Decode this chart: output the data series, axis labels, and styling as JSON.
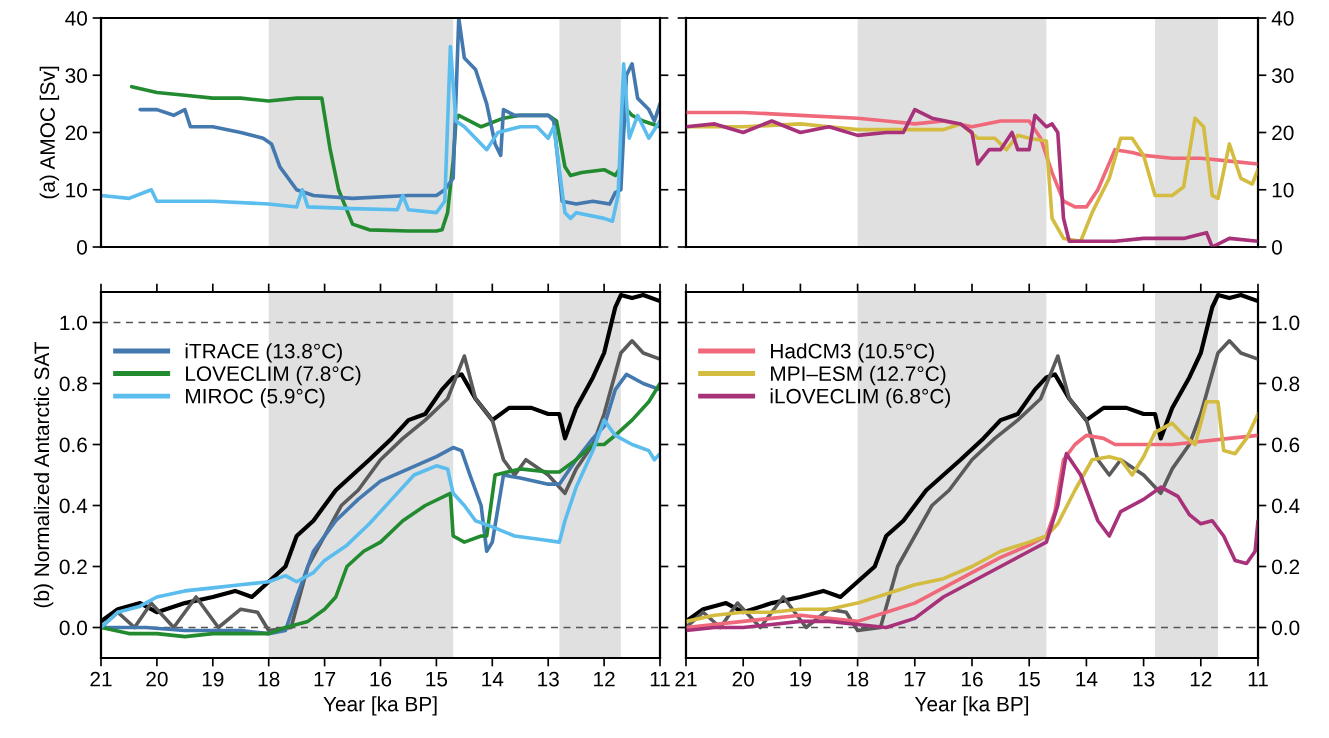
{
  "chart_data": [
    {
      "type": "line",
      "ylabel": "(a) AMOC [Sv]",
      "xlim": [
        21,
        11
      ],
      "xticks": [
        21,
        20,
        19,
        18,
        17,
        16,
        15,
        14,
        13,
        12,
        11
      ],
      "ylim": [
        0,
        40
      ],
      "yticks": [
        0,
        10,
        20,
        30,
        40
      ],
      "tick_labels": "y",
      "legend": false,
      "bands": [
        {
          "axis": "x",
          "from": 18,
          "to": 14.7,
          "color": "#e0e0e0"
        },
        {
          "axis": "x",
          "from": 12.8,
          "to": 11.7,
          "color": "#e0e0e0"
        }
      ],
      "series": [
        {
          "color": "#228b2f",
          "x": [
            20.45,
            20.0,
            19.5,
            19.0,
            18.5,
            18.0,
            17.5,
            17.05,
            16.9,
            16.75,
            16.5,
            16.2,
            15.5,
            15.0,
            14.9,
            14.8,
            14.7,
            14.65,
            14.6,
            14.4,
            14.2,
            13.8,
            13.5,
            13.0,
            12.85,
            12.7,
            12.6,
            12.4,
            12.0,
            11.8,
            11.7,
            11.65,
            11.6,
            11.5,
            11.3,
            11.0
          ],
          "values": [
            28,
            27,
            26.5,
            26,
            26,
            25.5,
            26,
            26,
            17,
            10,
            4,
            3,
            2.8,
            2.8,
            3,
            6,
            15,
            22,
            23,
            22,
            21,
            22.5,
            23,
            23,
            22,
            14,
            12.5,
            13,
            13.5,
            12.5,
            14,
            21,
            24,
            23,
            22,
            21
          ]
        },
        {
          "color": "#4479b0",
          "x": [
            20.3,
            20.0,
            19.7,
            19.5,
            19.4,
            19.0,
            18.5,
            18.1,
            17.95,
            17.8,
            17.5,
            17.2,
            16.5,
            15.5,
            15.0,
            14.85,
            14.7,
            14.6,
            14.5,
            14.3,
            14.1,
            13.95,
            13.85,
            13.8,
            13.6,
            13.0,
            12.9,
            12.75,
            12.5,
            12.2,
            11.9,
            11.8,
            11.7,
            11.6,
            11.5,
            11.4,
            11.2,
            11.1,
            11.0
          ],
          "values": [
            24,
            24,
            23,
            24,
            21,
            21,
            20,
            19,
            18,
            14,
            10,
            9,
            8.5,
            9,
            9,
            10,
            12,
            40,
            33,
            31,
            25,
            18,
            16,
            24,
            23,
            23,
            22,
            8,
            7.5,
            8,
            7.5,
            9.5,
            10,
            30,
            32,
            26,
            24,
            22,
            25
          ]
        },
        {
          "color": "#5bbdee",
          "x": [
            21.0,
            20.5,
            20.1,
            20.0,
            19.0,
            18.0,
            17.5,
            17.4,
            17.3,
            16.5,
            15.7,
            15.6,
            15.5,
            15.0,
            14.85,
            14.75,
            14.65,
            14.5,
            14.3,
            14.1,
            13.9,
            13.5,
            13.2,
            13.0,
            12.9,
            12.7,
            12.6,
            12.5,
            12.0,
            11.85,
            11.75,
            11.65,
            11.55,
            11.4,
            11.2,
            11.0
          ],
          "values": [
            9,
            8.5,
            10,
            8,
            8,
            7.5,
            7,
            10,
            7,
            6.7,
            6.5,
            9,
            6.5,
            6,
            8,
            35,
            22,
            21,
            19,
            17,
            20,
            21,
            21,
            19,
            21,
            6,
            5,
            6,
            5,
            4.5,
            9,
            32,
            19,
            23,
            19,
            22
          ]
        }
      ]
    },
    {
      "type": "line",
      "xlim": [
        21,
        11
      ],
      "xticks": [
        21,
        20,
        19,
        18,
        17,
        16,
        15,
        14,
        13,
        12,
        11
      ],
      "y2lim": [
        0,
        40
      ],
      "y2ticks": [
        0,
        10,
        20,
        30,
        40
      ],
      "tick_labels": "y",
      "legend": false,
      "bands": [
        {
          "axis": "x",
          "from": 18,
          "to": 14.7,
          "color": "#e0e0e0"
        },
        {
          "axis": "x",
          "from": 12.8,
          "to": 11.7,
          "color": "#e0e0e0"
        }
      ],
      "series": [
        {
          "axis": "y2",
          "color": "#f0697a",
          "x": [
            21.0,
            20.0,
            19.0,
            18.0,
            17.5,
            17.0,
            16.5,
            16.0,
            15.5,
            15.0,
            14.8,
            14.6,
            14.4,
            14.2,
            14.0,
            13.8,
            13.5,
            13.2,
            13.0,
            12.5,
            12.0,
            11.5,
            11.0
          ],
          "values": [
            23.5,
            23.5,
            23,
            22.5,
            22,
            21.5,
            22,
            21,
            22,
            22,
            19,
            13,
            8,
            7,
            7,
            10,
            17,
            16.5,
            16,
            15.5,
            15.5,
            15,
            14.5
          ]
        },
        {
          "axis": "y2",
          "color": "#d3bc3f",
          "x": [
            21.0,
            20.0,
            19.0,
            18.5,
            18.0,
            17.5,
            16.5,
            16.2,
            15.9,
            15.6,
            15.4,
            15.2,
            15.0,
            14.7,
            14.6,
            14.4,
            14.1,
            13.9,
            13.6,
            13.4,
            13.2,
            13.0,
            12.8,
            12.5,
            12.3,
            12.1,
            11.95,
            11.8,
            11.7,
            11.5,
            11.3,
            11.1,
            11.0
          ],
          "values": [
            21,
            21,
            21.5,
            21,
            20.5,
            20.5,
            20.5,
            21.5,
            19,
            19,
            17,
            19.5,
            19,
            18.5,
            5,
            1.5,
            1,
            6,
            12,
            19,
            19,
            16,
            9,
            9,
            10.5,
            22.5,
            21,
            9,
            8.5,
            18,
            12,
            11,
            13.5
          ]
        },
        {
          "axis": "y2",
          "color": "#a8327a",
          "x": [
            21.0,
            20.5,
            20.0,
            19.5,
            19.0,
            18.5,
            18.0,
            17.5,
            17.2,
            17.0,
            16.7,
            16.2,
            16.0,
            15.9,
            15.7,
            15.5,
            15.3,
            15.2,
            15.0,
            14.9,
            14.7,
            14.6,
            14.5,
            14.4,
            14.3,
            13.5,
            13.0,
            12.3,
            11.9,
            11.8,
            11.5,
            11.0
          ],
          "values": [
            21,
            21.5,
            20,
            22,
            20,
            21,
            19.5,
            20,
            20,
            24,
            22.5,
            21.5,
            20,
            14.5,
            17,
            17,
            20,
            17,
            17,
            23,
            21,
            21.5,
            20,
            5,
            1,
            1,
            1.5,
            1.5,
            2.5,
            0,
            1.5,
            1
          ]
        }
      ]
    },
    {
      "type": "line",
      "ylabel": "(b) Normalized Antarctic SAT",
      "xlabel": "Year [ka BP]",
      "xlim": [
        21,
        11
      ],
      "xticks": [
        21,
        20,
        19,
        18,
        17,
        16,
        15,
        14,
        13,
        12,
        11
      ],
      "ylim": [
        -0.1,
        1.1
      ],
      "yticks": [
        {
          "value": 0,
          "label": "0.0"
        },
        0.2,
        0.4,
        0.6,
        0.8,
        {
          "value": 1,
          "label": "1.0"
        }
      ],
      "legend": "top left",
      "bands": [
        {
          "axis": "x",
          "from": 18,
          "to": 14.7,
          "color": "#e0e0e0"
        },
        {
          "axis": "x",
          "from": 12.8,
          "to": 11.7,
          "color": "#e0e0e0"
        }
      ],
      "ref_lines": [
        {
          "axis": "y",
          "value": 0,
          "color": "#555555",
          "line_style": "dashed"
        },
        {
          "axis": "y",
          "value": 1,
          "color": "#555555",
          "line_style": "dashed"
        }
      ],
      "series": [
        {
          "color": "#000000",
          "x": [
            21.0,
            20.7,
            20.3,
            20.0,
            19.5,
            19.0,
            18.6,
            18.3,
            18.0,
            17.7,
            17.5,
            17.2,
            16.8,
            16.5,
            16.2,
            15.8,
            15.5,
            15.2,
            14.9,
            14.7,
            14.55,
            14.3,
            14.0,
            13.7,
            13.3,
            13.0,
            12.8,
            12.7,
            12.5,
            12.2,
            12.0,
            11.8,
            11.7,
            11.5,
            11.3,
            11.0
          ],
          "values": [
            0.02,
            0.06,
            0.08,
            0.05,
            0.08,
            0.1,
            0.12,
            0.1,
            0.15,
            0.2,
            0.3,
            0.35,
            0.45,
            0.5,
            0.55,
            0.62,
            0.68,
            0.7,
            0.78,
            0.82,
            0.83,
            0.75,
            0.68,
            0.72,
            0.72,
            0.7,
            0.7,
            0.62,
            0.72,
            0.82,
            0.9,
            1.05,
            1.09,
            1.08,
            1.09,
            1.07
          ]
        },
        {
          "color": "#5a5a5a",
          "x": [
            21.0,
            20.7,
            20.4,
            20.1,
            19.7,
            19.3,
            18.9,
            18.5,
            18.2,
            18.0,
            17.6,
            17.3,
            17.0,
            16.7,
            16.4,
            16.0,
            15.6,
            15.2,
            14.8,
            14.5,
            14.3,
            14.0,
            13.8,
            13.6,
            13.4,
            13.0,
            12.7,
            12.5,
            12.2,
            12.0,
            11.7,
            11.5,
            11.3,
            11.0
          ],
          "values": [
            0.0,
            0.05,
            0.0,
            0.08,
            0.0,
            0.1,
            0.0,
            0.06,
            0.05,
            -0.01,
            0.0,
            0.2,
            0.3,
            0.4,
            0.45,
            0.55,
            0.62,
            0.68,
            0.75,
            0.89,
            0.75,
            0.68,
            0.55,
            0.5,
            0.55,
            0.5,
            0.44,
            0.52,
            0.6,
            0.7,
            0.9,
            0.94,
            0.9,
            0.88
          ]
        },
        {
          "name": "iTRACE (13.8°C)",
          "color": "#4479b0",
          "x": [
            21.0,
            20.6,
            20.2,
            19.5,
            19.0,
            18.5,
            18.0,
            17.7,
            17.5,
            17.2,
            16.8,
            16.4,
            16.0,
            15.5,
            15.0,
            14.7,
            14.55,
            14.4,
            14.2,
            14.1,
            14.0,
            13.8,
            13.5,
            13.0,
            12.8,
            12.5,
            12.2,
            12.0,
            11.8,
            11.6,
            11.3,
            11.0
          ],
          "values": [
            0.0,
            0.0,
            0.0,
            -0.01,
            -0.01,
            -0.01,
            -0.02,
            -0.01,
            0.1,
            0.25,
            0.35,
            0.42,
            0.48,
            0.52,
            0.56,
            0.59,
            0.58,
            0.5,
            0.4,
            0.25,
            0.28,
            0.5,
            0.49,
            0.47,
            0.47,
            0.55,
            0.62,
            0.66,
            0.78,
            0.83,
            0.8,
            0.78
          ]
        },
        {
          "name": "LOVECLIM (7.8°C)",
          "color": "#228b2f",
          "x": [
            21.0,
            20.5,
            20.0,
            19.5,
            19.0,
            18.5,
            18.0,
            17.7,
            17.3,
            17.0,
            16.8,
            16.6,
            16.3,
            16.0,
            15.6,
            15.2,
            14.75,
            14.7,
            14.5,
            14.2,
            14.1,
            13.95,
            13.5,
            13.0,
            12.8,
            12.5,
            12.2,
            12.0,
            11.8,
            11.5,
            11.2,
            11.0
          ],
          "values": [
            0.0,
            -0.02,
            -0.02,
            -0.03,
            -0.02,
            -0.02,
            -0.02,
            0.0,
            0.02,
            0.06,
            0.1,
            0.2,
            0.25,
            0.28,
            0.35,
            0.4,
            0.44,
            0.3,
            0.28,
            0.3,
            0.3,
            0.5,
            0.52,
            0.51,
            0.51,
            0.55,
            0.6,
            0.6,
            0.63,
            0.68,
            0.74,
            0.8
          ]
        },
        {
          "name": "MIROC (5.9°C)",
          "color": "#5bbdee",
          "x": [
            21.0,
            20.7,
            20.3,
            20.0,
            19.5,
            19.0,
            18.5,
            18.0,
            17.7,
            17.5,
            17.2,
            17.0,
            16.6,
            16.2,
            15.8,
            15.4,
            15.0,
            14.8,
            14.7,
            14.5,
            14.3,
            14.0,
            13.6,
            13.2,
            12.8,
            12.7,
            12.5,
            12.2,
            12.0,
            11.8,
            11.5,
            11.2,
            11.1,
            11.0
          ],
          "values": [
            0.0,
            0.05,
            0.07,
            0.1,
            0.12,
            0.13,
            0.14,
            0.15,
            0.17,
            0.15,
            0.18,
            0.22,
            0.27,
            0.34,
            0.42,
            0.5,
            0.53,
            0.52,
            0.44,
            0.4,
            0.35,
            0.33,
            0.3,
            0.29,
            0.28,
            0.35,
            0.46,
            0.58,
            0.68,
            0.63,
            0.6,
            0.58,
            0.55,
            0.57
          ]
        }
      ]
    },
    {
      "type": "line",
      "xlabel": "Year [ka BP]",
      "xlim": [
        21,
        11
      ],
      "xticks": [
        21,
        20,
        19,
        18,
        17,
        16,
        15,
        14,
        13,
        12,
        11
      ],
      "y2lim": [
        -0.1,
        1.1
      ],
      "y2ticks": [
        {
          "value": 0,
          "label": "0.0"
        },
        0.2,
        0.4,
        0.6,
        0.8,
        {
          "value": 1,
          "label": "1.0"
        }
      ],
      "legend": "top left",
      "bands": [
        {
          "axis": "x",
          "from": 18,
          "to": 14.7,
          "color": "#e0e0e0"
        },
        {
          "axis": "x",
          "from": 12.8,
          "to": 11.7,
          "color": "#e0e0e0"
        }
      ],
      "ref_lines": [
        {
          "axis": "y2",
          "value": 0,
          "color": "#555555",
          "line_style": "dashed"
        },
        {
          "axis": "y2",
          "value": 1,
          "color": "#555555",
          "line_style": "dashed"
        }
      ],
      "series": [
        {
          "axis": "y2",
          "color": "#000000",
          "x": [
            21.0,
            20.7,
            20.3,
            20.0,
            19.5,
            19.0,
            18.6,
            18.3,
            18.0,
            17.7,
            17.5,
            17.2,
            16.8,
            16.5,
            16.2,
            15.8,
            15.5,
            15.2,
            14.9,
            14.7,
            14.55,
            14.3,
            14.0,
            13.7,
            13.3,
            13.0,
            12.8,
            12.7,
            12.5,
            12.2,
            12.0,
            11.8,
            11.7,
            11.5,
            11.3,
            11.0
          ],
          "values": [
            0.02,
            0.06,
            0.08,
            0.05,
            0.08,
            0.1,
            0.12,
            0.1,
            0.15,
            0.2,
            0.3,
            0.35,
            0.45,
            0.5,
            0.55,
            0.62,
            0.68,
            0.7,
            0.78,
            0.82,
            0.83,
            0.75,
            0.68,
            0.72,
            0.72,
            0.7,
            0.7,
            0.62,
            0.72,
            0.82,
            0.9,
            1.05,
            1.09,
            1.08,
            1.09,
            1.07
          ]
        },
        {
          "axis": "y2",
          "color": "#5a5a5a",
          "x": [
            21.0,
            20.7,
            20.4,
            20.1,
            19.7,
            19.3,
            18.9,
            18.5,
            18.2,
            18.0,
            17.6,
            17.3,
            17.0,
            16.7,
            16.4,
            16.0,
            15.6,
            15.2,
            14.8,
            14.5,
            14.3,
            14.0,
            13.8,
            13.6,
            13.4,
            13.0,
            12.7,
            12.5,
            12.2,
            12.0,
            11.7,
            11.5,
            11.3,
            11.0
          ],
          "values": [
            0.0,
            0.05,
            0.0,
            0.08,
            0.0,
            0.1,
            0.0,
            0.06,
            0.05,
            -0.01,
            0.0,
            0.2,
            0.3,
            0.4,
            0.45,
            0.55,
            0.62,
            0.68,
            0.75,
            0.89,
            0.75,
            0.68,
            0.55,
            0.5,
            0.55,
            0.5,
            0.44,
            0.52,
            0.6,
            0.7,
            0.9,
            0.94,
            0.9,
            0.88
          ]
        },
        {
          "axis": "y2",
          "name": "HadCM3 (10.5°C)",
          "color": "#f0697a",
          "x": [
            21.0,
            20.0,
            19.5,
            19.0,
            18.5,
            18.0,
            17.5,
            17.0,
            16.5,
            16.0,
            15.5,
            15.0,
            14.7,
            14.55,
            14.4,
            14.2,
            14.0,
            13.7,
            13.5,
            13.0,
            12.5,
            12.0,
            11.5,
            11.0
          ],
          "values": [
            0.0,
            0.02,
            0.03,
            0.04,
            0.03,
            0.02,
            0.05,
            0.08,
            0.13,
            0.18,
            0.23,
            0.27,
            0.3,
            0.38,
            0.55,
            0.6,
            0.63,
            0.62,
            0.6,
            0.6,
            0.6,
            0.61,
            0.62,
            0.63
          ]
        },
        {
          "axis": "y2",
          "name": "MPI‒ESM (12.7°C)",
          "color": "#d3bc3f",
          "x": [
            21.0,
            20.5,
            20.0,
            19.5,
            19.0,
            18.5,
            18.0,
            17.5,
            17.0,
            16.5,
            16.0,
            15.5,
            15.0,
            14.7,
            14.5,
            14.2,
            13.9,
            13.6,
            13.4,
            13.2,
            13.0,
            12.8,
            12.5,
            12.3,
            12.1,
            11.9,
            11.7,
            11.6,
            11.4,
            11.2,
            11.0
          ],
          "values": [
            0.02,
            0.04,
            0.05,
            0.05,
            0.06,
            0.06,
            0.08,
            0.11,
            0.14,
            0.16,
            0.2,
            0.25,
            0.28,
            0.3,
            0.34,
            0.45,
            0.55,
            0.56,
            0.55,
            0.5,
            0.56,
            0.64,
            0.67,
            0.63,
            0.6,
            0.74,
            0.74,
            0.58,
            0.57,
            0.62,
            0.7
          ]
        },
        {
          "axis": "y2",
          "name": "iLOVECLIM (6.8°C)",
          "color": "#a8327a",
          "x": [
            21.0,
            20.5,
            20.0,
            19.5,
            19.0,
            18.5,
            18.0,
            17.5,
            17.0,
            16.5,
            16.0,
            15.5,
            15.0,
            14.7,
            14.5,
            14.35,
            14.1,
            13.8,
            13.6,
            13.4,
            13.0,
            12.7,
            12.4,
            12.2,
            12.0,
            11.8,
            11.6,
            11.4,
            11.2,
            11.05,
            11.0
          ],
          "values": [
            -0.01,
            0.0,
            0.0,
            0.01,
            0.02,
            0.02,
            0.01,
            0.0,
            0.03,
            0.1,
            0.15,
            0.2,
            0.25,
            0.28,
            0.4,
            0.57,
            0.5,
            0.35,
            0.3,
            0.38,
            0.42,
            0.46,
            0.43,
            0.37,
            0.34,
            0.35,
            0.3,
            0.22,
            0.21,
            0.25,
            0.35
          ]
        }
      ]
    }
  ]
}
